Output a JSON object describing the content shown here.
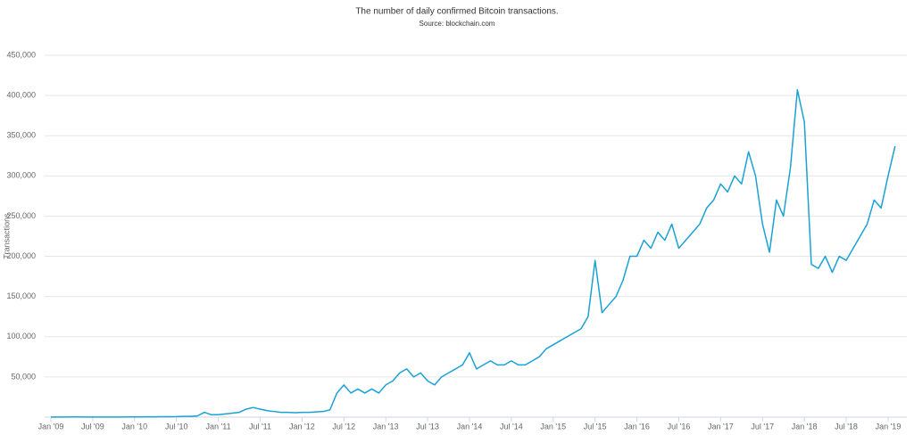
{
  "chart_data": {
    "type": "line",
    "subtitle": "The number of daily confirmed Bitcoin transactions.",
    "source": "Source: blockchain.com",
    "y_label": "Transactions",
    "grid": true,
    "x": [
      "2009-01",
      "2009-02",
      "2009-03",
      "2009-04",
      "2009-05",
      "2009-06",
      "2009-07",
      "2009-08",
      "2009-09",
      "2009-10",
      "2009-11",
      "2009-12",
      "2010-01",
      "2010-02",
      "2010-03",
      "2010-04",
      "2010-05",
      "2010-06",
      "2010-07",
      "2010-08",
      "2010-09",
      "2010-10",
      "2010-11",
      "2010-12",
      "2011-01",
      "2011-02",
      "2011-03",
      "2011-04",
      "2011-05",
      "2011-06",
      "2011-07",
      "2011-08",
      "2011-09",
      "2011-10",
      "2011-11",
      "2011-12",
      "2012-01",
      "2012-02",
      "2012-03",
      "2012-04",
      "2012-05",
      "2012-06",
      "2012-07",
      "2012-08",
      "2012-09",
      "2012-10",
      "2012-11",
      "2012-12",
      "2013-01",
      "2013-02",
      "2013-03",
      "2013-04",
      "2013-05",
      "2013-06",
      "2013-07",
      "2013-08",
      "2013-09",
      "2013-10",
      "2013-11",
      "2013-12",
      "2014-01",
      "2014-02",
      "2014-03",
      "2014-04",
      "2014-05",
      "2014-06",
      "2014-07",
      "2014-08",
      "2014-09",
      "2014-10",
      "2014-11",
      "2014-12",
      "2015-01",
      "2015-02",
      "2015-03",
      "2015-04",
      "2015-05",
      "2015-06",
      "2015-07",
      "2015-08",
      "2015-09",
      "2015-10",
      "2015-11",
      "2015-12",
      "2016-01",
      "2016-02",
      "2016-03",
      "2016-04",
      "2016-05",
      "2016-06",
      "2016-07",
      "2016-08",
      "2016-09",
      "2016-10",
      "2016-11",
      "2016-12",
      "2017-01",
      "2017-02",
      "2017-03",
      "2017-04",
      "2017-05",
      "2017-06",
      "2017-07",
      "2017-08",
      "2017-09",
      "2017-10",
      "2017-11",
      "2017-12",
      "2018-01",
      "2018-02",
      "2018-03",
      "2018-04",
      "2018-05",
      "2018-06",
      "2018-07",
      "2018-08",
      "2018-09",
      "2018-10",
      "2018-11",
      "2018-12",
      "2019-01",
      "2019-02"
    ],
    "series": [
      {
        "name": "Transactions",
        "color": "#1aa1d6",
        "values": [
          100,
          200,
          200,
          300,
          300,
          200,
          200,
          200,
          200,
          200,
          200,
          300,
          300,
          300,
          400,
          400,
          500,
          600,
          700,
          1000,
          1000,
          1500,
          6000,
          3000,
          3000,
          4000,
          5000,
          6000,
          10000,
          12000,
          10000,
          8000,
          7000,
          6000,
          6000,
          5500,
          6000,
          6000,
          6500,
          7000,
          9000,
          30000,
          40000,
          30000,
          35000,
          30000,
          35000,
          30000,
          40000,
          45000,
          55000,
          60000,
          50000,
          55000,
          45000,
          40000,
          50000,
          55000,
          60000,
          65000,
          80000,
          60000,
          65000,
          70000,
          65000,
          65000,
          70000,
          65000,
          65000,
          70000,
          75000,
          85000,
          90000,
          95000,
          100000,
          105000,
          110000,
          125000,
          195000,
          130000,
          140000,
          150000,
          170000,
          200000,
          200000,
          220000,
          210000,
          230000,
          220000,
          240000,
          210000,
          220000,
          230000,
          240000,
          260000,
          270000,
          290000,
          280000,
          300000,
          290000,
          330000,
          300000,
          240000,
          205000,
          270000,
          250000,
          310000,
          407000,
          367000,
          190000,
          185000,
          200000,
          180000,
          200000,
          195000,
          210000,
          225000,
          240000,
          270000,
          260000,
          300000,
          337000
        ]
      }
    ],
    "xlim": [
      "2009-01",
      "2019-03"
    ],
    "xticks": [
      {
        "value": "2009-01",
        "label": "Jan '09"
      },
      {
        "value": "2009-07",
        "label": "Jul '09"
      },
      {
        "value": "2010-01",
        "label": "Jan '10"
      },
      {
        "value": "2010-07",
        "label": "Jul '10"
      },
      {
        "value": "2011-01",
        "label": "Jan '11"
      },
      {
        "value": "2011-07",
        "label": "Jul '11"
      },
      {
        "value": "2012-01",
        "label": "Jan '12"
      },
      {
        "value": "2012-07",
        "label": "Jul '12"
      },
      {
        "value": "2013-01",
        "label": "Jan '13"
      },
      {
        "value": "2013-07",
        "label": "Jul '13"
      },
      {
        "value": "2014-01",
        "label": "Jan '14"
      },
      {
        "value": "2014-07",
        "label": "Jul '14"
      },
      {
        "value": "2015-01",
        "label": "Jan '15"
      },
      {
        "value": "2015-07",
        "label": "Jul '15"
      },
      {
        "value": "2016-01",
        "label": "Jan '16"
      },
      {
        "value": "2016-07",
        "label": "Jul '16"
      },
      {
        "value": "2017-01",
        "label": "Jan '17"
      },
      {
        "value": "2017-07",
        "label": "Jul '17"
      },
      {
        "value": "2018-01",
        "label": "Jan '18"
      },
      {
        "value": "2018-07",
        "label": "Jul '18"
      },
      {
        "value": "2019-01",
        "label": "Jan '19"
      }
    ],
    "ylim": [
      0,
      450000
    ],
    "yticks": [
      {
        "value": 50000,
        "label": "50,000"
      },
      {
        "value": 100000,
        "label": "100,000"
      },
      {
        "value": 150000,
        "label": "150,000"
      },
      {
        "value": 200000,
        "label": "200,000"
      },
      {
        "value": 250000,
        "label": "250,000"
      },
      {
        "value": 300000,
        "label": "300,000"
      },
      {
        "value": 350000,
        "label": "350,000"
      },
      {
        "value": 400000,
        "label": "400,000"
      },
      {
        "value": 450000,
        "label": "450,000"
      }
    ]
  }
}
